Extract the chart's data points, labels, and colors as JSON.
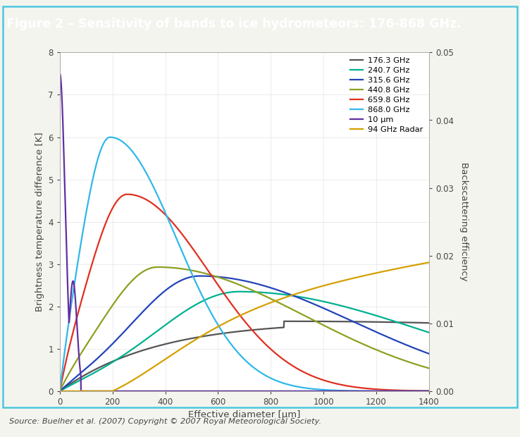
{
  "title": "Figure 2 – Sensitivity of bands to ice hydrometeors: 176-868 GHz.",
  "title_bg": "#4ac8de",
  "title_color": "white",
  "xlabel": "Effective diameter [μm]",
  "ylabel_left": "Brightness temperature difference [K]",
  "ylabel_right": "Backscattering efficiency",
  "source_text": "Source: Buelher et al. (2007) Copyright © 2007 Royal Meteorological Society.",
  "xlim": [
    0,
    1400
  ],
  "ylim_left": [
    0,
    8
  ],
  "ylim_right": [
    0,
    0.05
  ],
  "bg_color": "#f4f4ef",
  "plot_bg": "white",
  "border_color": "#4ac8de",
  "series": [
    {
      "label": "176.3 GHz",
      "color": "#555555"
    },
    {
      "label": "240.7 GHz",
      "color": "#00b090"
    },
    {
      "label": "315.6 GHz",
      "color": "#2244b8"
    },
    {
      "label": "440.8 GHz",
      "color": "#8da020"
    },
    {
      "label": "659.8 GHz",
      "color": "#e03020"
    },
    {
      "label": "868.0 GHz",
      "color": "#30b8e8"
    },
    {
      "label": "10 μm",
      "color": "#6030a0"
    },
    {
      "label": "94 GHz Radar",
      "color": "#d4a000"
    }
  ]
}
